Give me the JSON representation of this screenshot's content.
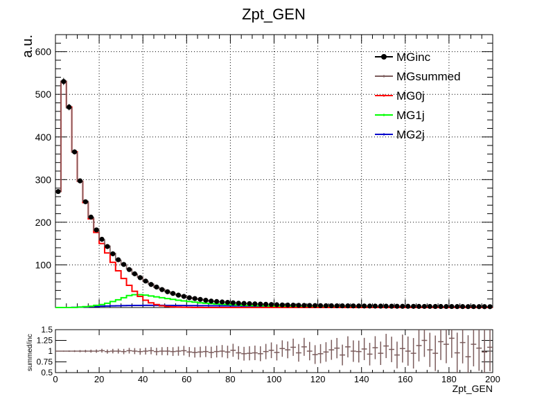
{
  "chart_data": [
    {
      "type": "line",
      "title": "Zpt_GEN",
      "ylabel": "a.u.",
      "xlabel": "",
      "xlim": [
        0,
        200
      ],
      "ylim": [
        0,
        640
      ],
      "x_ticks": [
        "0",
        "20",
        "40",
        "60",
        "80",
        "100",
        "120",
        "140",
        "160",
        "180",
        "200"
      ],
      "y_ticks": [
        "100",
        "200",
        "300",
        "400",
        "500",
        "600"
      ],
      "grid": true,
      "legend_position": "top-right",
      "bin_width": 2.5,
      "x": [
        1.25,
        3.75,
        6.25,
        8.75,
        11.25,
        13.75,
        16.25,
        18.75,
        21.25,
        23.75,
        26.25,
        28.75,
        31.25,
        33.75,
        36.25,
        38.75,
        41.25,
        43.75,
        46.25,
        48.75,
        51.25,
        53.75,
        56.25,
        58.75,
        61.25,
        63.75,
        66.25,
        68.75,
        71.25,
        73.75,
        76.25,
        78.75,
        81.25,
        83.75,
        86.25,
        88.75,
        91.25,
        93.75,
        96.25,
        98.75,
        101.25,
        103.75,
        106.25,
        108.75,
        111.25,
        113.75,
        116.25,
        118.75,
        121.25,
        123.75,
        126.25,
        128.75,
        131.25,
        133.75,
        136.25,
        138.75,
        141.25,
        143.75,
        146.25,
        148.75,
        151.25,
        153.75,
        156.25,
        158.75,
        161.25,
        163.75,
        166.25,
        168.75,
        171.25,
        173.75,
        176.25,
        178.75,
        181.25,
        183.75,
        186.25,
        188.75,
        191.25,
        193.75,
        196.25,
        198.75
      ],
      "series": [
        {
          "name": "MGinc",
          "color": "#000000",
          "marker": "circle",
          "values": [
            272,
            530,
            470,
            365,
            297,
            248,
            212,
            182,
            160,
            143,
            126,
            112,
            101,
            89,
            79,
            70,
            62,
            54,
            48,
            42,
            37,
            33,
            29,
            26,
            23,
            21,
            19,
            17,
            15,
            14,
            13,
            12,
            11,
            10,
            9.5,
            9,
            8.5,
            8,
            7.5,
            7,
            6.5,
            6,
            5.8,
            5.5,
            5.2,
            5,
            4.8,
            4.6,
            4.4,
            4.2,
            4.1,
            4,
            3.9,
            3.8,
            3.7,
            3.6,
            3.5,
            3.4,
            3.3,
            3.2,
            3.1,
            3,
            2.9,
            2.8,
            2.8,
            2.7,
            2.6,
            2.5,
            2.5,
            2.4,
            2.4,
            2.3,
            2.3,
            2.2,
            2.2,
            2.1,
            2.1,
            2,
            2,
            1.9
          ]
        },
        {
          "name": "MGsummed",
          "color": "#7a5b5b",
          "marker": "none",
          "values": [
            272,
            531,
            468,
            364,
            296,
            249,
            211,
            181,
            159,
            144,
            127,
            111,
            100,
            90,
            78,
            71,
            61,
            55,
            47,
            43,
            37,
            32,
            29,
            26,
            23,
            21,
            19,
            17,
            15,
            14,
            13,
            12,
            11,
            10,
            9.4,
            9,
            8.5,
            8,
            7.5,
            7,
            6.5,
            6,
            5.8,
            5.5,
            5.2,
            5,
            4.8,
            4.6,
            4.4,
            4.2,
            4.1,
            4,
            3.9,
            3.8,
            3.7,
            3.6,
            3.5,
            3.4,
            3.3,
            3.2,
            3.1,
            3,
            2.9,
            2.8,
            2.8,
            2.7,
            2.6,
            2.5,
            2.5,
            2.4,
            2.4,
            2.3,
            2.3,
            2.2,
            2.2,
            2.1,
            2.1,
            2,
            2,
            1.9
          ]
        },
        {
          "name": "MG0j",
          "color": "#ff0000",
          "marker": "none",
          "values": [
            272,
            530,
            470,
            365,
            296,
            246,
            208,
            176,
            150,
            128,
            106,
            86,
            68,
            52,
            38,
            26,
            17,
            11,
            7,
            4,
            2.5,
            1.5,
            1,
            0.6,
            0.4,
            0.3,
            0.2,
            0.1,
            0.1,
            0.1,
            0,
            0,
            0,
            0,
            0,
            0,
            0,
            0,
            0,
            0,
            0,
            0,
            0,
            0,
            0,
            0,
            0,
            0,
            0,
            0,
            0,
            0,
            0,
            0,
            0,
            0,
            0,
            0,
            0,
            0,
            0,
            0,
            0,
            0,
            0,
            0,
            0,
            0,
            0,
            0,
            0,
            0,
            0,
            0,
            0,
            0,
            0,
            0,
            0,
            0
          ]
        },
        {
          "name": "MG1j",
          "color": "#00ff00",
          "marker": "none",
          "values": [
            0,
            0,
            0,
            0,
            1,
            2,
            3,
            5,
            7,
            10,
            14,
            18,
            23,
            28,
            30,
            30,
            29,
            27,
            25,
            23,
            21,
            19,
            17,
            15.5,
            14,
            12.5,
            11,
            10,
            9,
            8.2,
            7.5,
            6.8,
            6.2,
            5.6,
            5.1,
            4.7,
            4.3,
            4,
            3.7,
            3.4,
            3.1,
            2.9,
            2.7,
            2.5,
            2.3,
            2.2,
            2,
            1.9,
            1.8,
            1.7,
            1.6,
            1.5,
            1.4,
            1.3,
            1.2,
            1.1,
            1,
            1,
            0.9,
            0.9,
            0.8,
            0.8,
            0.7,
            0.7,
            0.6,
            0.6,
            0.6,
            0.5,
            0.5,
            0.5,
            0.5,
            0.4,
            0.4,
            0.4,
            0.4,
            0.3,
            0.3,
            0.3,
            0.3,
            0.3
          ]
        },
        {
          "name": "MG2j",
          "color": "#0000cc",
          "marker": "none",
          "values": [
            0,
            0,
            0,
            0.5,
            1,
            1.5,
            2,
            2.5,
            3,
            3.4,
            3.8,
            4.1,
            4.4,
            4.6,
            4.8,
            4.9,
            5,
            5,
            5,
            5,
            4.9,
            4.8,
            4.7,
            4.6,
            4.5,
            4.4,
            4.3,
            4.2,
            4.1,
            4,
            3.9,
            3.8,
            3.7,
            3.6,
            3.5,
            3.4,
            3.3,
            3.2,
            3.1,
            3,
            2.9,
            2.8,
            2.7,
            2.6,
            2.5,
            2.4,
            2.4,
            2.3,
            2.3,
            2.2,
            2.2,
            2.1,
            2.1,
            2,
            2,
            1.9,
            1.9,
            1.8,
            1.8,
            1.7,
            1.7,
            1.6,
            1.6,
            1.5,
            1.5,
            1.5,
            1.4,
            1.4,
            1.4,
            1.3,
            1.3,
            1.3,
            1.3,
            1.2,
            1.2,
            1.2,
            1.2,
            1.1,
            1.1,
            1.1
          ]
        }
      ]
    },
    {
      "type": "scatter",
      "title": "",
      "xlabel": "Zpt_GEN",
      "ylabel": "summed/inc",
      "xlim": [
        0,
        200
      ],
      "ylim": [
        0.5,
        1.5
      ],
      "x_ticks": [
        "0",
        "20",
        "40",
        "60",
        "80",
        "100",
        "120",
        "140",
        "160",
        "180",
        "200"
      ],
      "y_ticks": [
        "0.5",
        "0.75",
        "1",
        "1.25",
        "1.5"
      ],
      "grid": false,
      "series": [
        {
          "name": "",
          "color": "#7a5b5b",
          "x": [
            1.25,
            3.75,
            6.25,
            8.75,
            11.25,
            13.75,
            16.25,
            18.75,
            21.25,
            23.75,
            26.25,
            28.75,
            31.25,
            33.75,
            36.25,
            38.75,
            41.25,
            43.75,
            46.25,
            48.75,
            51.25,
            53.75,
            56.25,
            58.75,
            61.25,
            63.75,
            66.25,
            68.75,
            71.25,
            73.75,
            76.25,
            78.75,
            81.25,
            83.75,
            86.25,
            88.75,
            91.25,
            93.75,
            96.25,
            98.75,
            101.25,
            103.75,
            106.25,
            108.75,
            111.25,
            113.75,
            116.25,
            118.75,
            121.25,
            123.75,
            126.25,
            128.75,
            131.25,
            133.75,
            136.25,
            138.75,
            141.25,
            143.75,
            146.25,
            148.75,
            151.25,
            153.75,
            156.25,
            158.75,
            161.25,
            163.75,
            166.25,
            168.75,
            171.25,
            173.75,
            176.25,
            178.75,
            181.25,
            183.75,
            186.25,
            188.75,
            191.25,
            193.75,
            196.25,
            198.75
          ],
          "values": [
            1.0,
            1.0,
            1.0,
            1.0,
            1.0,
            1.0,
            1.0,
            1.0,
            1.01,
            0.99,
            1.0,
            1.0,
            0.99,
            1.01,
            1.0,
            0.99,
            1.0,
            1.01,
            0.99,
            1.0,
            1.0,
            0.99,
            1.0,
            1.01,
            0.98,
            0.97,
            0.98,
            0.99,
            0.97,
            0.99,
            1.0,
            0.98,
            1.02,
            0.96,
            0.94,
            0.95,
            0.96,
            0.94,
            0.99,
            1.02,
            0.97,
            1.06,
            1.03,
            1.09,
            0.96,
            1.1,
            1.0,
            0.92,
            0.94,
            0.98,
            1.03,
            1.07,
            0.91,
            1.1,
            1.0,
            0.99,
            1.05,
            0.93,
            1.08,
            0.95,
            1.12,
            1.04,
            0.91,
            1.06,
            1.0,
            0.95,
            1.13,
            1.25,
            1.03,
            0.95,
            1.22,
            1.16,
            1.3,
            0.96,
            1.2,
            0.87,
            1.16,
            1.07,
            0.98,
            1.09
          ]
        }
      ]
    }
  ],
  "legend": {
    "items": [
      {
        "label": "MGinc",
        "color": "#000000",
        "marker": "circle"
      },
      {
        "label": "MGsummed",
        "color": "#7a5b5b",
        "marker": "none"
      },
      {
        "label": "MG0j",
        "color": "#ff0000",
        "marker": "none"
      },
      {
        "label": "MG1j",
        "color": "#00ff00",
        "marker": "none"
      },
      {
        "label": "MG2j",
        "color": "#0000cc",
        "marker": "none"
      }
    ]
  }
}
